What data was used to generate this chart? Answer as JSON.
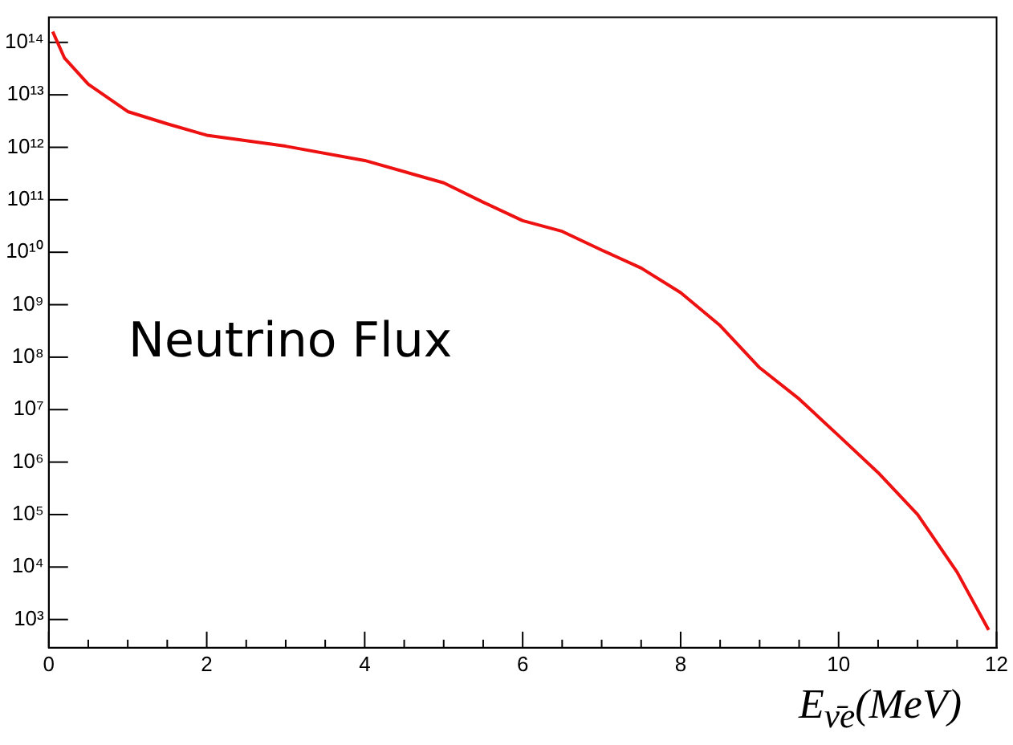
{
  "chart_data": {
    "type": "line",
    "xlabel": "E$_{ν̄e}$(MeV)",
    "annotations": [
      "Neutrino Flux"
    ],
    "x": [
      0.05,
      0.2,
      0.5,
      1,
      1.5,
      2,
      3,
      4,
      5,
      5.5,
      6,
      6.5,
      7,
      7.5,
      8,
      8.5,
      9,
      9.5,
      10,
      10.5,
      11,
      11.5,
      11.9
    ],
    "series": [
      {
        "color": "#ee1111",
        "values": [
          160000000000000.0,
          50000000000000.0,
          16000000000000.0,
          4800000000000.0,
          2800000000000.0,
          1700000000000.0,
          1050000000000.0,
          560000000000.0,
          210000000000.0,
          90000000000.0,
          40000000000.0,
          25000000000.0,
          11000000000.0,
          5000000000.0,
          1700000000.0,
          400000000.0,
          63000000.0,
          16000000.0,
          3200000.0,
          630000.0,
          100000.0,
          8000.0,
          630
        ]
      }
    ],
    "log": "y",
    "grid": false,
    "legend": false,
    "marker": "none",
    "line_style": "solid",
    "xlim": [
      0,
      12
    ],
    "ylim": [
      290,
      300000000000000.0
    ],
    "xticks": [
      0,
      {
        "value": 0.5,
        "label": null
      },
      {
        "value": 1,
        "label": null
      },
      {
        "value": 1.5,
        "label": null
      },
      2,
      {
        "value": 2.5,
        "label": null
      },
      {
        "value": 3,
        "label": null
      },
      {
        "value": 3.5,
        "label": null
      },
      4,
      {
        "value": 4.5,
        "label": null
      },
      {
        "value": 5,
        "label": null
      },
      {
        "value": 5.5,
        "label": null
      },
      6,
      {
        "value": 6.5,
        "label": null
      },
      {
        "value": 7,
        "label": null
      },
      {
        "value": 7.5,
        "label": null
      },
      8,
      {
        "value": 8.5,
        "label": null
      },
      {
        "value": 9,
        "label": null
      },
      {
        "value": 9.5,
        "label": null
      },
      10,
      {
        "value": 10.5,
        "label": null
      },
      {
        "value": 11,
        "label": null
      },
      {
        "value": 11.5,
        "label": null
      },
      12
    ],
    "yticks": [
      {
        "value": 1000.0,
        "label": "10³"
      },
      {
        "value": 10000.0,
        "label": "10⁴"
      },
      {
        "value": 100000.0,
        "label": "10⁵"
      },
      {
        "value": 1000000.0,
        "label": "10⁶"
      },
      {
        "value": 10000000.0,
        "label": "10⁷"
      },
      {
        "value": 100000000.0,
        "label": "10⁸"
      },
      {
        "value": 1000000000.0,
        "label": "10⁹"
      },
      {
        "value": 10000000000.0,
        "label": "10¹⁰"
      },
      {
        "value": 100000000000.0,
        "label": "10¹¹"
      },
      {
        "value": 1000000000000.0,
        "label": "10¹²"
      },
      {
        "value": 10000000000000.0,
        "label": "10¹³"
      },
      {
        "value": 100000000000000.0,
        "label": "10¹⁴"
      }
    ]
  }
}
